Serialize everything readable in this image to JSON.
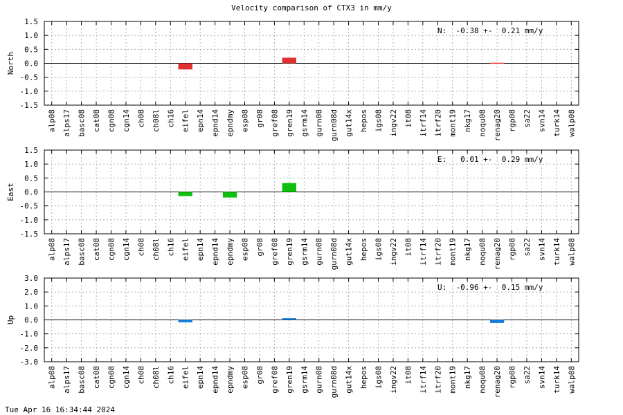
{
  "title": "Velocity comparison of CTX3 in mm/y",
  "footer": "Tue Apr 16 16:34:44 2024",
  "chart_data": [
    {
      "type": "bar",
      "ylabel": "North",
      "ylim": [
        -1.5,
        1.5
      ],
      "yticks": [
        "1.5",
        "1.0",
        "0.5",
        "0.0",
        "-0.5",
        "-1.0",
        "-1.5"
      ],
      "annotation": "N:  -0.38 +-  0.21 mm/y",
      "color": "#e03030",
      "grid": true,
      "categories": [
        "alp08",
        "alps17",
        "basc08",
        "cat08",
        "cgn08",
        "cgn14",
        "ch08",
        "ch08l",
        "ch16",
        "eifel",
        "epn14",
        "epnd14",
        "epndmy",
        "esp08",
        "gr08",
        "gref08",
        "gren19",
        "gsrm14",
        "gurn08",
        "gurn08d",
        "gut14x",
        "hepos",
        "igs08",
        "ingv22",
        "it08",
        "itrf14",
        "itrf20",
        "mont19",
        "nkg17",
        "noqu08",
        "renag20",
        "rgp08",
        "sa22",
        "svn14",
        "turk14",
        "walp08"
      ],
      "values": [
        0,
        0,
        0,
        0,
        0,
        0,
        0,
        0,
        0,
        -0.22,
        0,
        0,
        0,
        0,
        0,
        0,
        0.2,
        0,
        0,
        0,
        0,
        0,
        0,
        0,
        0,
        0,
        0,
        0,
        0,
        0,
        0.02,
        0,
        0,
        0,
        0,
        0
      ]
    },
    {
      "type": "bar",
      "ylabel": "East",
      "ylim": [
        -1.5,
        1.5
      ],
      "yticks": [
        "1.5",
        "1.0",
        "0.5",
        "0.0",
        "-0.5",
        "-1.0",
        "-1.5"
      ],
      "annotation": "E:   0.01 +-  0.29 mm/y",
      "color": "#10c010",
      "grid": true,
      "categories": [
        "alp08",
        "alps17",
        "basc08",
        "cat08",
        "cgn08",
        "cgn14",
        "ch08",
        "ch08l",
        "ch16",
        "eifel",
        "epn14",
        "epnd14",
        "epndmy",
        "esp08",
        "gr08",
        "gref08",
        "gren19",
        "gsrm14",
        "gurn08",
        "gurn08d",
        "gut14x",
        "hepos",
        "igs08",
        "ingv22",
        "it08",
        "itrf14",
        "itrf20",
        "mont19",
        "nkg17",
        "noqu08",
        "renag20",
        "rgp08",
        "sa22",
        "svn14",
        "turk14",
        "walp08"
      ],
      "values": [
        0,
        0,
        0,
        0,
        0,
        0,
        0,
        0,
        0,
        -0.15,
        0,
        0,
        -0.2,
        0,
        0,
        0,
        0.32,
        0,
        0,
        0,
        0,
        0,
        0,
        0,
        0,
        0,
        0,
        0,
        0,
        0,
        0,
        0,
        0,
        0,
        0,
        0
      ]
    },
    {
      "type": "bar",
      "ylabel": "Up",
      "ylim": [
        -3.0,
        3.0
      ],
      "yticks": [
        "3.0",
        "2.0",
        "1.0",
        "0.0",
        "-1.0",
        "-2.0",
        "-3.0"
      ],
      "annotation": "U:  -0.96 +-  0.15 mm/y",
      "color": "#1a80e0",
      "grid": true,
      "categories": [
        "alp08",
        "alps17",
        "basc08",
        "cat08",
        "cgn08",
        "cgn14",
        "ch08",
        "ch08l",
        "ch16",
        "eifel",
        "epn14",
        "epnd14",
        "epndmy",
        "esp08",
        "gr08",
        "gref08",
        "gren19",
        "gsrm14",
        "gurn08",
        "gurn08d",
        "gut14x",
        "hepos",
        "igs08",
        "ingv22",
        "it08",
        "itrf14",
        "itrf20",
        "mont19",
        "nkg17",
        "noqu08",
        "renag20",
        "rgp08",
        "sa22",
        "svn14",
        "turk14",
        "walp08"
      ],
      "values": [
        0,
        0,
        0,
        0,
        0,
        0,
        0,
        0,
        0,
        -0.18,
        0,
        0,
        0,
        0,
        0,
        0,
        0.12,
        0,
        0,
        0,
        0,
        0,
        0,
        0,
        0,
        0,
        0,
        0,
        0,
        0,
        -0.22,
        0,
        0,
        0,
        0,
        0
      ]
    }
  ]
}
